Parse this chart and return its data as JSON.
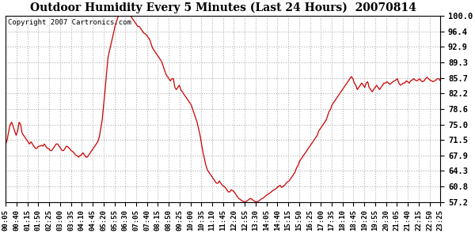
{
  "title": "Outdoor Humidity Every 5 Minutes (Last 24 Hours)  20070814",
  "copyright_text": "Copyright 2007 Cartronics.com",
  "line_color": "#cc0000",
  "background_color": "#ffffff",
  "grid_color": "#b0b0b0",
  "ylim": [
    57.2,
    100.0
  ],
  "yticks": [
    57.2,
    60.8,
    64.3,
    67.9,
    71.5,
    75.0,
    78.6,
    82.2,
    85.7,
    89.3,
    92.9,
    96.4,
    100.0
  ],
  "xtick_labels": [
    "00:05",
    "00:40",
    "01:15",
    "01:50",
    "02:25",
    "03:00",
    "03:35",
    "04:10",
    "04:45",
    "05:20",
    "05:55",
    "06:30",
    "07:05",
    "07:40",
    "08:15",
    "08:50",
    "09:25",
    "10:00",
    "10:35",
    "11:10",
    "11:45",
    "12:20",
    "12:55",
    "13:30",
    "14:05",
    "14:40",
    "15:15",
    "15:50",
    "16:25",
    "17:00",
    "17:35",
    "18:10",
    "18:45",
    "19:20",
    "19:55",
    "20:30",
    "21:05",
    "21:40",
    "22:15",
    "22:50",
    "23:25"
  ],
  "data_points": [
    70.5,
    71.5,
    73.5,
    75.0,
    75.5,
    74.5,
    73.5,
    72.5,
    73.5,
    75.5,
    75.0,
    73.0,
    72.5,
    72.0,
    71.5,
    71.0,
    70.5,
    71.0,
    70.5,
    70.0,
    69.5,
    69.5,
    70.0,
    70.0,
    70.2,
    70.0,
    70.5,
    70.0,
    69.5,
    69.5,
    69.0,
    69.0,
    69.5,
    70.0,
    70.5,
    70.5,
    70.0,
    69.5,
    69.0,
    69.0,
    69.5,
    70.0,
    69.8,
    69.5,
    69.0,
    68.8,
    68.5,
    68.0,
    67.8,
    67.5,
    67.8,
    68.0,
    68.5,
    68.0,
    67.5,
    67.5,
    68.0,
    68.5,
    69.0,
    69.5,
    70.0,
    70.5,
    71.0,
    72.0,
    74.0,
    76.0,
    79.5,
    83.0,
    87.0,
    90.5,
    92.0,
    93.5,
    95.0,
    96.5,
    98.0,
    99.0,
    100.0,
    100.0,
    100.0,
    100.0,
    100.0,
    100.0,
    100.0,
    100.0,
    100.0,
    99.5,
    99.0,
    98.5,
    98.0,
    97.5,
    97.5,
    97.0,
    96.5,
    96.0,
    95.8,
    95.5,
    95.0,
    94.5,
    93.5,
    92.5,
    92.0,
    91.5,
    91.0,
    90.5,
    90.0,
    89.5,
    88.5,
    87.5,
    86.5,
    86.0,
    85.5,
    85.0,
    85.5,
    85.5,
    83.5,
    83.0,
    83.5,
    84.0,
    83.0,
    82.5,
    82.0,
    81.5,
    81.0,
    80.5,
    80.0,
    79.5,
    78.5,
    77.5,
    76.5,
    75.5,
    74.0,
    72.5,
    70.5,
    68.5,
    67.0,
    65.5,
    64.5,
    64.0,
    63.5,
    63.0,
    62.5,
    62.0,
    61.5,
    61.5,
    62.0,
    61.5,
    61.0,
    60.8,
    60.5,
    60.0,
    59.5,
    59.5,
    60.0,
    59.8,
    59.5,
    59.0,
    58.5,
    58.0,
    57.8,
    57.5,
    57.3,
    57.2,
    57.3,
    57.5,
    57.8,
    58.0,
    57.8,
    57.5,
    57.3,
    57.2,
    57.3,
    57.5,
    57.8,
    58.0,
    58.2,
    58.5,
    58.8,
    59.0,
    59.2,
    59.5,
    59.8,
    60.0,
    60.2,
    60.5,
    60.8,
    61.0,
    60.5,
    60.8,
    61.0,
    61.5,
    61.8,
    62.0,
    62.5,
    63.0,
    63.5,
    64.0,
    65.0,
    65.5,
    66.5,
    67.0,
    67.5,
    68.0,
    68.5,
    69.0,
    69.5,
    70.0,
    70.5,
    71.0,
    71.5,
    72.0,
    72.5,
    73.5,
    74.0,
    74.5,
    75.0,
    75.5,
    76.0,
    77.0,
    78.0,
    78.5,
    79.5,
    80.0,
    80.5,
    81.0,
    81.5,
    82.0,
    82.5,
    83.0,
    83.5,
    84.0,
    84.5,
    85.0,
    85.5,
    86.0,
    85.5,
    84.5,
    84.0,
    83.0,
    83.5,
    84.0,
    84.5,
    84.0,
    83.5,
    84.5,
    84.8,
    83.5,
    83.0,
    82.5,
    83.0,
    83.5,
    84.0,
    83.5,
    83.0,
    83.5,
    84.0,
    84.5,
    84.5,
    84.8,
    84.5,
    84.2,
    84.5,
    84.8,
    85.0,
    85.2,
    85.5,
    84.5,
    84.0,
    84.2,
    84.5,
    84.5,
    85.0,
    84.8,
    84.5,
    85.0,
    85.2,
    85.5,
    85.2,
    85.0,
    85.2,
    85.5,
    85.0,
    84.8,
    85.0,
    85.5,
    85.8,
    85.5,
    85.2,
    85.0,
    84.8,
    85.0,
    85.2,
    85.5,
    85.5,
    85.0
  ]
}
